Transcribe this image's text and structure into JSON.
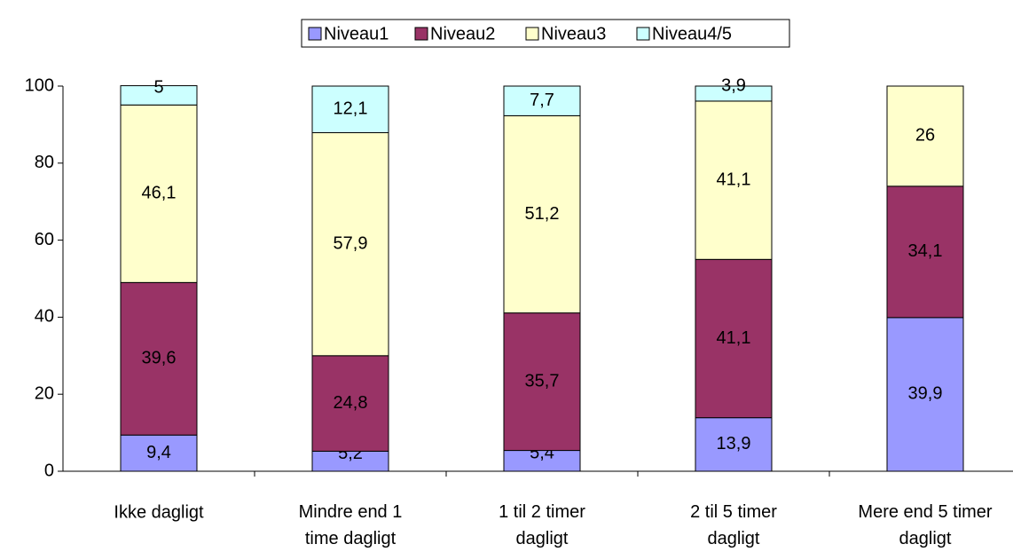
{
  "chart_data": {
    "type": "stacked-bar",
    "categories": [
      "Ikke dagligt",
      "Mindre end 1\ntime dagligt",
      "1 til 2 timer\ndagligt",
      "2 til 5 timer\ndagligt",
      "Mere end 5 timer\ndagligt"
    ],
    "series": [
      {
        "name": "Niveau1",
        "color": "#9999ff",
        "values": [
          9.4,
          5.2,
          5.4,
          13.9,
          39.9
        ],
        "value_labels": [
          "9,4",
          "5,2",
          "5,4",
          "13,9",
          "39,9"
        ]
      },
      {
        "name": "Niveau2",
        "color": "#993366",
        "values": [
          39.6,
          24.8,
          35.7,
          41.1,
          34.1
        ],
        "value_labels": [
          "39,6",
          "24,8",
          "35,7",
          "41,1",
          "34,1"
        ]
      },
      {
        "name": "Niveau3",
        "color": "#ffffcc",
        "values": [
          46.1,
          57.9,
          51.2,
          41.1,
          26
        ],
        "value_labels": [
          "46,1",
          "57,9",
          "51,2",
          "41,1",
          "26"
        ]
      },
      {
        "name": "Niveau4/5",
        "color": "#ccffff",
        "values": [
          5,
          12.1,
          7.7,
          3.9,
          null
        ],
        "value_labels": [
          "5",
          "12,1",
          "7,7",
          "3,9",
          null
        ]
      }
    ],
    "ylim": [
      0,
      100
    ],
    "yticks": [
      0,
      20,
      40,
      60,
      80,
      100
    ],
    "grid": false,
    "legend": "top"
  }
}
